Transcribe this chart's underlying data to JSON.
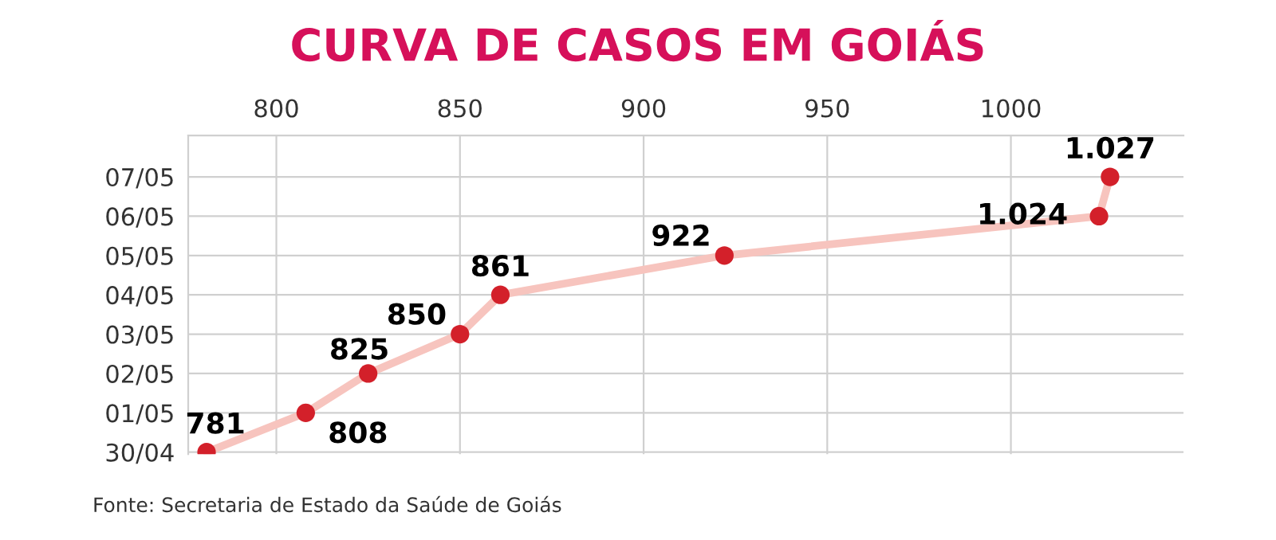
{
  "chart_data": {
    "type": "line",
    "orientation": "horizontal",
    "title": "CURVA DE CASOS EM GOIÁS",
    "categories": [
      "07/05",
      "06/05",
      "05/05",
      "04/05",
      "03/05",
      "02/05",
      "01/05",
      "30/04"
    ],
    "series": [
      {
        "color": "#f7c4be",
        "colors": [
          "#d3202a",
          "#d3202a",
          "#d3202a",
          "#d3202a",
          "#d3202a",
          "#d3202a",
          "#d3202a",
          "#d3202a"
        ],
        "values": [
          1027,
          1024,
          922,
          861,
          850,
          825,
          808,
          781
        ],
        "value_labels": [
          "1.027",
          "1.024",
          "922",
          "861",
          "850",
          "825",
          "808",
          "781"
        ]
      }
    ],
    "xlim": [
      776,
      1047
    ],
    "xticks": [
      800,
      850,
      900,
      950,
      1000
    ],
    "grid": true,
    "marker": "circle",
    "line_style": "solid",
    "legend": false,
    "annotations": [
      "Fonte: Secretaria de Estado da Saúde de Goiás"
    ]
  }
}
